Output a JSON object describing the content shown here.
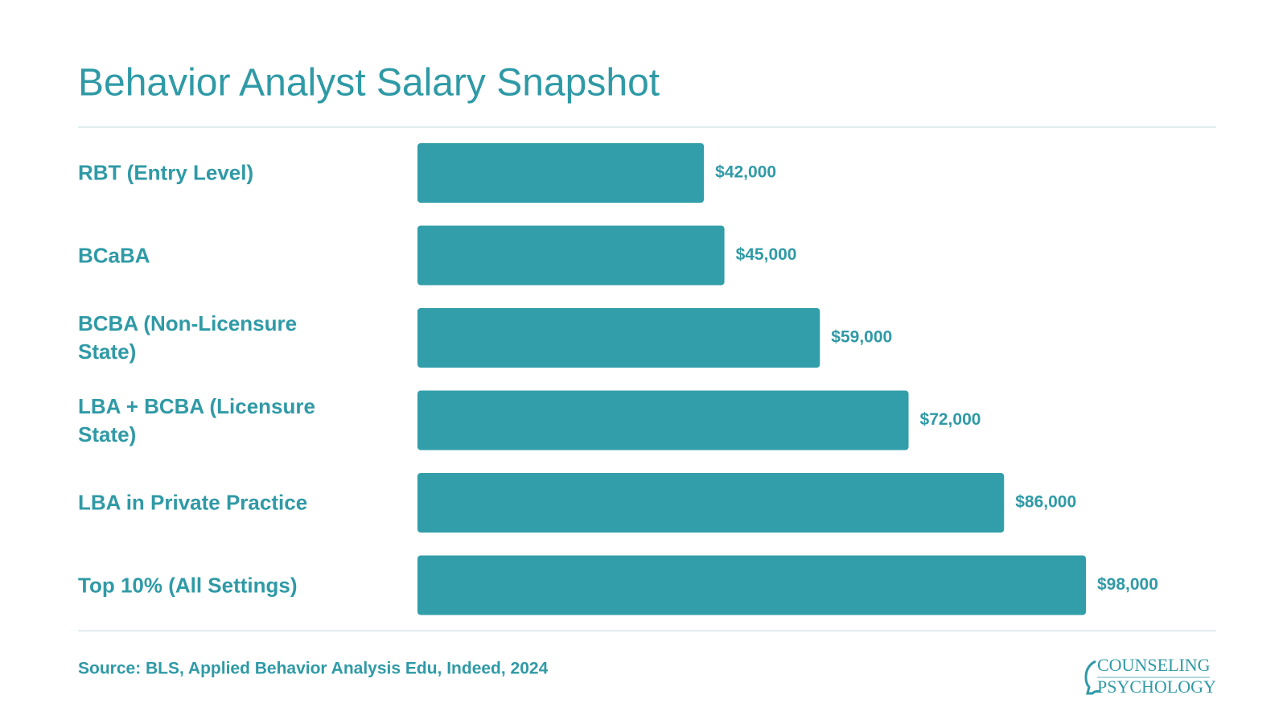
{
  "chart_data": {
    "type": "bar",
    "orientation": "horizontal",
    "title": "Behavior Analyst Salary Snapshot",
    "categories": [
      "RBT (Entry Level)",
      "BCaBA",
      "BCBA (Non-Licensure State)",
      "LBA + BCBA (Licensure State)",
      "LBA in Private Practice",
      "Top 10% (All Settings)"
    ],
    "values": [
      42000,
      45000,
      59000,
      72000,
      86000,
      98000
    ],
    "value_labels": [
      "$42,000",
      "$45,000",
      "$59,000",
      "$72,000",
      "$86,000",
      "$98,000"
    ],
    "color": "#319ea9",
    "source": "Source: BLS, Applied Behavior Analysis Edu, Indeed, 2024"
  },
  "logo": {
    "line1": "COUNSELING",
    "line2": "PSYCHOLOGY"
  }
}
